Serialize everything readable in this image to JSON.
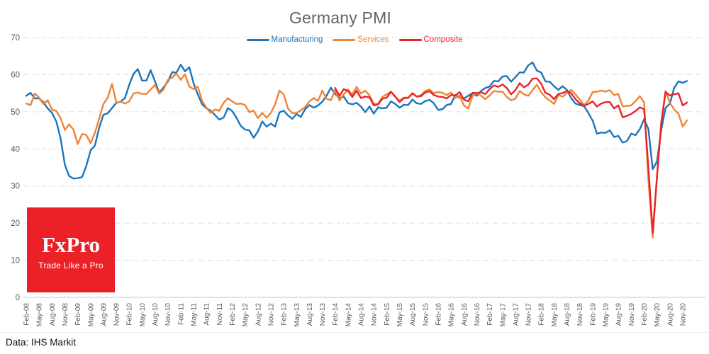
{
  "header": {
    "title": "Germany PMI"
  },
  "footer": {
    "source": "Data: IHS Markit"
  },
  "logo": {
    "brand": "FxPro",
    "tagline": "Trade Like a Pro",
    "bg_color": "#EB2127",
    "text_color": "#FFFFFF"
  },
  "style": {
    "grid_color": "#DCDCDC",
    "zero_line_color": "#C6C6C6",
    "axis_label_color": "#595959",
    "title_color": "#636363"
  },
  "chart_data": {
    "type": "line",
    "title": "Germany PMI",
    "x_unit": "month",
    "x_start": "Feb-08",
    "x_end": "Dec-20",
    "ylim": [
      0,
      70
    ],
    "yticks": [
      0,
      10,
      20,
      30,
      40,
      50,
      60,
      70
    ],
    "grid": "horizontal-dashed",
    "legend_position": "top-center",
    "tick_every": 3,
    "tick_labels": [
      "Feb-08",
      "May-08",
      "Aug-08",
      "Nov-08",
      "Feb-09",
      "May-09",
      "Aug-09",
      "Nov-09",
      "Feb-10",
      "May-10",
      "Aug-10",
      "Nov-10",
      "Feb-11",
      "May-11",
      "Aug-11",
      "Nov-11",
      "Feb-12",
      "May-12",
      "Aug-12",
      "Nov-12",
      "Feb-13",
      "May-13",
      "Aug-13",
      "Nov-13",
      "Feb-14",
      "May-14",
      "Aug-14",
      "Nov-14",
      "Feb-15",
      "May-15",
      "Aug-15",
      "Nov-15",
      "Feb-16",
      "May-16",
      "Aug-16",
      "Nov-16",
      "Feb-17",
      "May-17",
      "Aug-17",
      "Nov-17",
      "Feb-18",
      "May-18",
      "Aug-18",
      "Nov-18",
      "Feb-19",
      "May-19",
      "Aug-19",
      "Nov-19",
      "Feb-20",
      "May-20",
      "Aug-20",
      "Nov-20"
    ],
    "months": [
      "Feb-08",
      "Mar-08",
      "Apr-08",
      "May-08",
      "Jun-08",
      "Jul-08",
      "Aug-08",
      "Sep-08",
      "Oct-08",
      "Nov-08",
      "Dec-08",
      "Jan-09",
      "Feb-09",
      "Mar-09",
      "Apr-09",
      "May-09",
      "Jun-09",
      "Jul-09",
      "Aug-09",
      "Sep-09",
      "Oct-09",
      "Nov-09",
      "Dec-09",
      "Jan-10",
      "Feb-10",
      "Mar-10",
      "Apr-10",
      "May-10",
      "Jun-10",
      "Jul-10",
      "Aug-10",
      "Sep-10",
      "Oct-10",
      "Nov-10",
      "Dec-10",
      "Jan-11",
      "Feb-11",
      "Mar-11",
      "Apr-11",
      "May-11",
      "Jun-11",
      "Jul-11",
      "Aug-11",
      "Sep-11",
      "Oct-11",
      "Nov-11",
      "Dec-11",
      "Jan-12",
      "Feb-12",
      "Mar-12",
      "Apr-12",
      "May-12",
      "Jun-12",
      "Jul-12",
      "Aug-12",
      "Sep-12",
      "Oct-12",
      "Nov-12",
      "Dec-12",
      "Jan-13",
      "Feb-13",
      "Mar-13",
      "Apr-13",
      "May-13",
      "Jun-13",
      "Jul-13",
      "Aug-13",
      "Sep-13",
      "Oct-13",
      "Nov-13",
      "Dec-13",
      "Jan-14",
      "Feb-14",
      "Mar-14",
      "Apr-14",
      "May-14",
      "Jun-14",
      "Jul-14",
      "Aug-14",
      "Sep-14",
      "Oct-14",
      "Nov-14",
      "Dec-14",
      "Jan-15",
      "Feb-15",
      "Mar-15",
      "Apr-15",
      "May-15",
      "Jun-15",
      "Jul-15",
      "Aug-15",
      "Sep-15",
      "Oct-15",
      "Nov-15",
      "Dec-15",
      "Jan-16",
      "Feb-16",
      "Mar-16",
      "Apr-16",
      "May-16",
      "Jun-16",
      "Jul-16",
      "Aug-16",
      "Sep-16",
      "Oct-16",
      "Nov-16",
      "Dec-16",
      "Jan-17",
      "Feb-17",
      "Mar-17",
      "Apr-17",
      "May-17",
      "Jun-17",
      "Jul-17",
      "Aug-17",
      "Sep-17",
      "Oct-17",
      "Nov-17",
      "Dec-17",
      "Jan-18",
      "Feb-18",
      "Mar-18",
      "Apr-18",
      "May-18",
      "Jun-18",
      "Jul-18",
      "Aug-18",
      "Sep-18",
      "Oct-18",
      "Nov-18",
      "Dec-18",
      "Jan-19",
      "Feb-19",
      "Mar-19",
      "Apr-19",
      "May-19",
      "Jun-19",
      "Jul-19",
      "Aug-19",
      "Sep-19",
      "Oct-19",
      "Nov-19",
      "Dec-19",
      "Jan-20",
      "Feb-20",
      "Mar-20",
      "Apr-20",
      "May-20",
      "Jun-20",
      "Jul-20",
      "Aug-20",
      "Sep-20",
      "Oct-20",
      "Nov-20",
      "Dec-20"
    ],
    "series": [
      {
        "name": "Manufacturing",
        "color": "#1B75BC",
        "start_index": 0,
        "values": [
          54.3,
          55.1,
          53.6,
          53.6,
          52.6,
          50.9,
          49.7,
          47.4,
          42.9,
          35.7,
          32.7,
          32.0,
          32.1,
          32.4,
          35.4,
          39.6,
          40.9,
          45.7,
          49.2,
          49.6,
          51.0,
          52.4,
          52.7,
          53.7,
          57.2,
          60.2,
          61.5,
          58.4,
          58.4,
          61.2,
          58.2,
          55.1,
          56.6,
          58.1,
          60.7,
          60.5,
          62.7,
          60.9,
          62.0,
          57.7,
          54.6,
          52.0,
          50.9,
          50.3,
          49.1,
          47.9,
          48.4,
          51.0,
          50.2,
          48.4,
          46.2,
          45.2,
          45.0,
          43.0,
          44.7,
          47.4,
          46.0,
          46.8,
          46.0,
          49.8,
          50.3,
          49.0,
          48.1,
          49.4,
          48.6,
          50.7,
          51.8,
          51.1,
          51.7,
          52.7,
          54.3,
          56.5,
          54.8,
          53.7,
          54.1,
          52.3,
          52.0,
          52.4,
          51.4,
          49.9,
          51.4,
          49.5,
          51.2,
          50.9,
          51.1,
          52.8,
          52.1,
          51.1,
          51.9,
          51.8,
          53.3,
          52.3,
          52.1,
          52.9,
          53.2,
          52.3,
          50.5,
          50.7,
          51.8,
          52.1,
          54.5,
          53.8,
          53.6,
          54.3,
          55.0,
          54.3,
          55.6,
          56.4,
          56.8,
          58.3,
          58.2,
          59.5,
          59.6,
          58.1,
          59.3,
          60.6,
          60.6,
          62.5,
          63.3,
          61.1,
          60.6,
          58.2,
          58.1,
          56.9,
          55.9,
          56.9,
          55.9,
          53.7,
          52.2,
          51.8,
          51.5,
          49.7,
          47.6,
          44.1,
          44.4,
          44.3,
          45.0,
          43.2,
          43.5,
          41.7,
          42.1,
          44.1,
          43.7,
          45.3,
          48.0,
          45.4,
          34.5,
          36.6,
          45.2,
          51.0,
          52.2,
          56.4,
          58.2,
          57.8,
          58.3
        ]
      },
      {
        "name": "Services",
        "color": "#EE8434",
        "start_index": 0,
        "values": [
          52.2,
          51.8,
          54.9,
          53.8,
          52.1,
          53.1,
          50.6,
          50.2,
          48.3,
          45.1,
          46.6,
          45.2,
          41.3,
          44.0,
          43.8,
          41.5,
          44.3,
          48.1,
          52.1,
          53.8,
          57.5,
          52.5,
          52.7,
          52.2,
          52.8,
          54.9,
          55.2,
          54.8,
          54.8,
          56.0,
          57.2,
          54.9,
          56.0,
          58.6,
          59.2,
          60.3,
          58.6,
          60.1,
          56.8,
          56.1,
          56.7,
          52.9,
          51.1,
          49.7,
          50.6,
          50.3,
          52.4,
          53.7,
          52.8,
          52.1,
          52.2,
          51.8,
          49.9,
          50.3,
          48.3,
          49.7,
          48.4,
          49.7,
          52.0,
          55.7,
          54.7,
          50.9,
          49.6,
          49.7,
          50.4,
          51.3,
          52.8,
          53.7,
          52.9,
          55.7,
          53.5,
          53.1,
          55.9,
          53.0,
          54.7,
          56.0,
          54.6,
          56.7,
          54.9,
          55.7,
          54.4,
          52.1,
          52.1,
          54.0,
          54.7,
          55.4,
          54.0,
          53.0,
          53.8,
          53.8,
          54.9,
          54.1,
          54.5,
          55.6,
          56.0,
          55.0,
          55.3,
          55.1,
          54.5,
          55.2,
          53.7,
          54.4,
          51.7,
          50.9,
          54.2,
          55.1,
          54.3,
          53.4,
          54.4,
          55.6,
          55.4,
          55.4,
          54.0,
          53.1,
          53.5,
          55.6,
          54.7,
          54.3,
          55.8,
          57.3,
          55.3,
          53.9,
          53.0,
          52.1,
          54.5,
          54.1,
          55.0,
          55.9,
          54.7,
          53.3,
          51.8,
          53.0,
          55.3,
          55.4,
          55.7,
          55.4,
          55.8,
          54.5,
          54.8,
          51.4,
          51.6,
          51.7,
          52.9,
          54.2,
          52.5,
          31.7,
          16.2,
          32.6,
          47.3,
          55.6,
          52.5,
          50.6,
          49.5,
          46.0,
          47.7
        ]
      },
      {
        "name": "Composite",
        "color": "#E9232B",
        "start_index": 72,
        "values": [
          56.4,
          54.3,
          56.1,
          55.6,
          54.0,
          55.7,
          53.7,
          54.1,
          53.9,
          51.7,
          52.0,
          53.5,
          53.8,
          55.4,
          54.1,
          52.6,
          53.7,
          53.7,
          55.0,
          54.1,
          54.2,
          55.2,
          55.5,
          54.5,
          54.1,
          54.0,
          53.6,
          54.5,
          54.4,
          55.3,
          53.3,
          52.8,
          55.1,
          55.0,
          55.2,
          54.8,
          56.1,
          57.1,
          56.7,
          57.4,
          56.4,
          54.7,
          55.8,
          57.7,
          56.6,
          57.3,
          58.9,
          59.0,
          57.6,
          55.1,
          54.6,
          53.4,
          54.8,
          55.0,
          55.6,
          55.0,
          53.4,
          52.3,
          51.6,
          52.1,
          52.8,
          51.4,
          52.2,
          52.6,
          52.6,
          50.9,
          51.7,
          48.5,
          48.9,
          49.4,
          50.2,
          51.2,
          50.7,
          35.0,
          17.4,
          32.3,
          47.0,
          55.3,
          54.4,
          54.7,
          55.0,
          51.7,
          52.5
        ]
      }
    ]
  }
}
